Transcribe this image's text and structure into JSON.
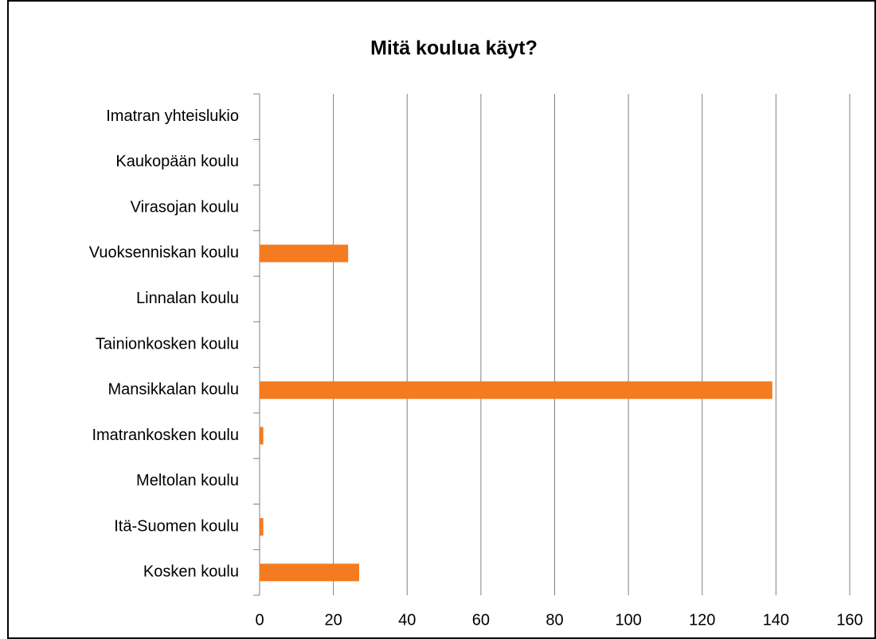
{
  "chart_data": {
    "type": "bar",
    "orientation": "horizontal",
    "title": "Mitä koulua käyt?",
    "categories": [
      "Imatran yhteislukio",
      "Kaukopään koulu",
      "Virasojan koulu",
      "Vuoksenniskan koulu",
      "Linnalan koulu",
      "Tainionkosken koulu",
      "Mansikkalan koulu",
      "Imatrankosken koulu",
      "Meltolan koulu",
      "Itä-Suomen koulu",
      "Kosken koulu"
    ],
    "values": [
      0,
      0,
      0,
      24,
      0,
      0,
      139,
      1,
      0,
      1,
      27
    ],
    "color": "#f47b20",
    "xlim": [
      0,
      160
    ],
    "xticks": [
      0,
      20,
      40,
      60,
      80,
      100,
      120,
      140,
      160
    ],
    "grid": true
  }
}
